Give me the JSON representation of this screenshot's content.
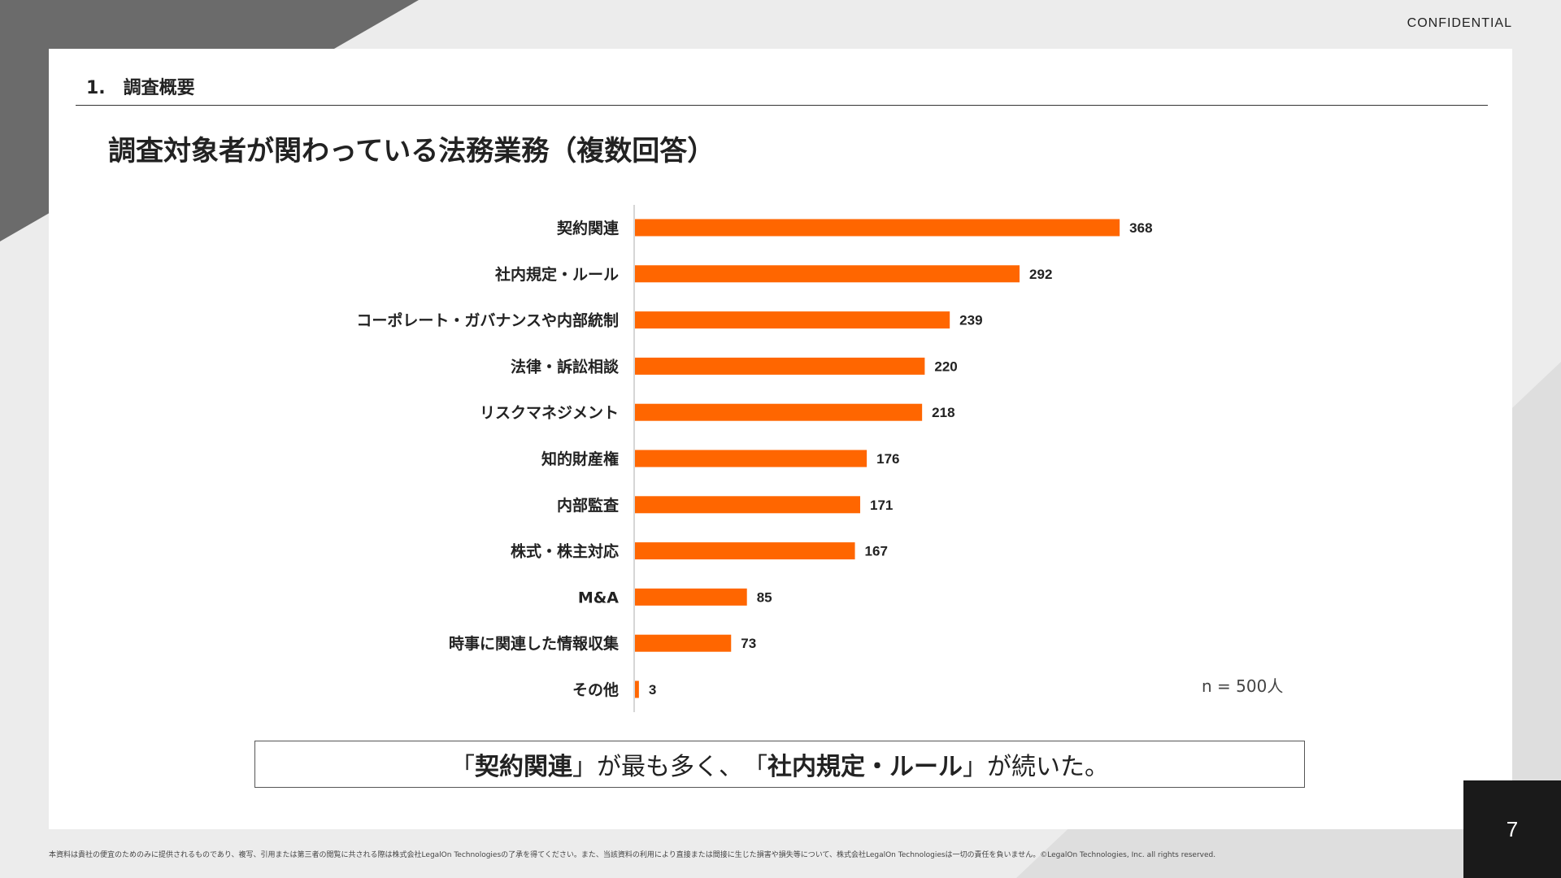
{
  "header": {
    "confidential": "CONFIDENTIAL",
    "section": "1.　調査概要",
    "title": "調査対象者が関わっている法務業務（複数回答）"
  },
  "chart_data": {
    "type": "bar",
    "orientation": "horizontal",
    "categories": [
      "契約関連",
      "社内規定・ルール",
      "コーポレート・ガバナンスや内部統制",
      "法律・訴訟相談",
      "リスクマネジメント",
      "知的財産権",
      "内部監査",
      "株式・株主対応",
      "M&A",
      "時事に関連した情報収集",
      "その他"
    ],
    "values": [
      368,
      292,
      239,
      220,
      218,
      176,
      171,
      167,
      85,
      73,
      3
    ],
    "bar_color": "#ff6600",
    "sample_note": "n = 500人"
  },
  "summary": {
    "q1": "「",
    "b1": "契約関連",
    "q2": "」",
    "t1": "が最も多く、",
    "q3": "「",
    "b2": "社内規定・ルール",
    "q4": "」",
    "t2": "が続いた。"
  },
  "footer": {
    "disclaimer": "本資料は貴社の便宜のためのみに提供されるものであり、複写、引用または第三者の閲覧に共される際は株式会社LegalOn Technologiesの了承を得てください。また、当該資料の利用により直接または間接に生じた損害や損失等について、株式会社LegalOn Technologiesは一切の責任を負いません。©LegalOn Technologies, Inc. all rights reserved."
  },
  "page_number": "7",
  "colors": {
    "accent": "#ff6600",
    "background": "#ececec",
    "dark_triangle": "#6b6b6b",
    "page_box": "#1a1a1a"
  }
}
